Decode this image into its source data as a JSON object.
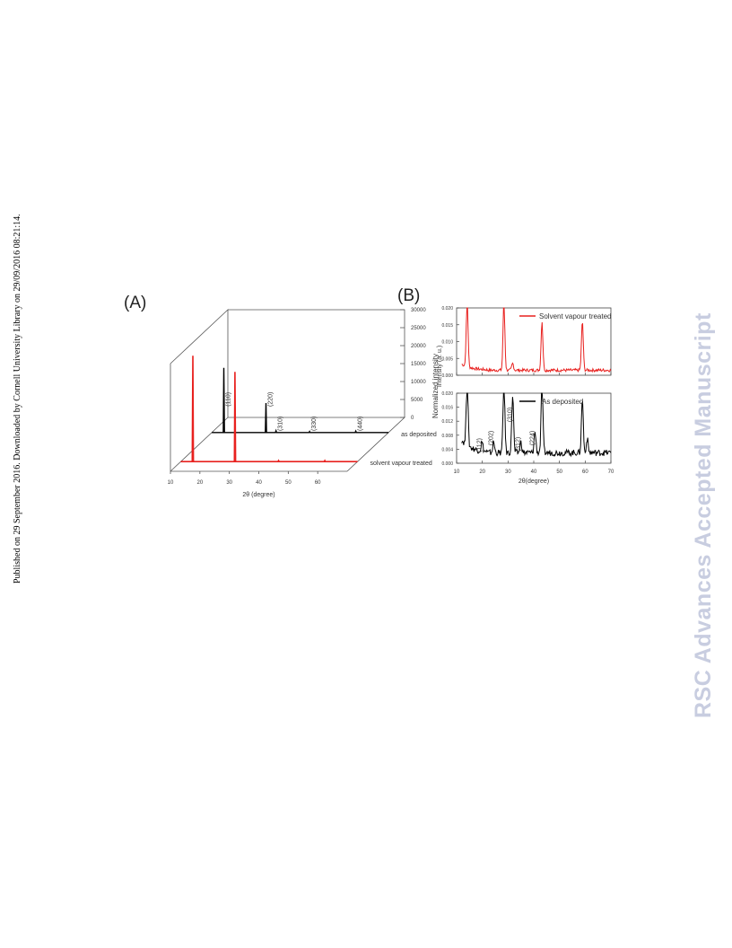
{
  "sidebar_text": "Published on 29 September 2016. Downloaded by Cornell University Library on 29/09/2016 08:21:14.",
  "watermark": "RSC Advances Accepted Manuscript",
  "colors": {
    "treated": "#e8211f",
    "deposited": "#000000"
  },
  "chart_data": [
    {
      "panel_label": "(A)",
      "type": "line",
      "projection": "3d-waterfall",
      "xlabel": "2θ (degree)",
      "ylabel": "Intensity (a. u.)",
      "x_ticks": [
        "10",
        "20",
        "30",
        "40",
        "50",
        "60"
      ],
      "z_ticks": [
        "0",
        "5000",
        "10000",
        "15000",
        "20000",
        "25000",
        "30000"
      ],
      "xlim": [
        10,
        70
      ],
      "zlim": [
        0,
        30000
      ],
      "series": [
        {
          "name": "as deposited",
          "color": "#000000",
          "peaks": [
            [
              14.1,
              18000
            ],
            [
              28.4,
              8200
            ],
            [
              31.8,
              500
            ],
            [
              43.2,
              300
            ],
            [
              58.9,
              400
            ]
          ]
        },
        {
          "name": "solvent vapour treated",
          "color": "#e8211f",
          "peaks": [
            [
              14.1,
              29500
            ],
            [
              28.4,
              25000
            ],
            [
              43.2,
              300
            ],
            [
              58.9,
              300
            ]
          ]
        }
      ],
      "annotations": [
        "(110)",
        "(220)",
        "(310)",
        "(330)",
        "(440)"
      ]
    },
    {
      "panel_label": "(B)",
      "type": "line",
      "xlabel": "2θ(degree)",
      "ylabel": "Normalized intensity",
      "x_ticks": [
        "10",
        "20",
        "30",
        "40",
        "50",
        "60",
        "70"
      ],
      "xlim": [
        10,
        70
      ],
      "panels": [
        {
          "name": "Solvent vapour treated",
          "color": "#e8211f",
          "ylim": [
            0,
            0.02
          ],
          "y_ticks": [
            "0.000",
            "0.005",
            "0.010",
            "0.015",
            "0.020"
          ],
          "baseline": 0.0015,
          "peaks": [
            [
              14.1,
              0.02
            ],
            [
              28.4,
              0.02
            ],
            [
              31.8,
              0.002
            ],
            [
              43.2,
              0.0145
            ],
            [
              58.9,
              0.0145
            ]
          ]
        },
        {
          "name": "As deposited",
          "color": "#000000",
          "ylim": [
            0,
            0.02
          ],
          "y_ticks": [
            "0.000",
            "0.004",
            "0.008",
            "0.012",
            "0.016",
            "0.020"
          ],
          "baseline": 0.003,
          "peaks": [
            [
              14.1,
              0.02
            ],
            [
              19.9,
              0.0024
            ],
            [
              24.4,
              0.003
            ],
            [
              28.4,
              0.02
            ],
            [
              31.8,
              0.0165
            ],
            [
              35.0,
              0.003
            ],
            [
              40.5,
              0.006
            ],
            [
              43.2,
              0.02
            ],
            [
              58.9,
              0.0155
            ],
            [
              60.8,
              0.004
            ]
          ]
        }
      ],
      "annotations": [
        "(112)",
        "(202)",
        "(310)",
        "(312)",
        "(224)"
      ]
    }
  ]
}
